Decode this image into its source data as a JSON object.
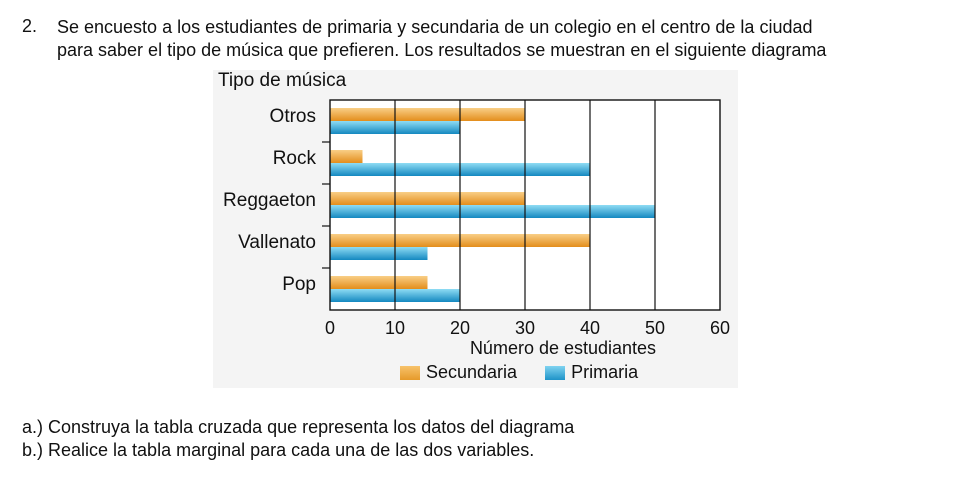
{
  "question": {
    "number": "2.",
    "line1": "Se encuesto a los estudiantes de primaria y secundaria de un colegio en el centro de la ciudad",
    "line2": "para saber el tipo de música que prefieren. Los resultados se muestran en el siguiente diagrama"
  },
  "chart_data": {
    "type": "bar",
    "orientation": "horizontal",
    "title": "Tipo de música",
    "xlabel": "Número de estudiantes",
    "ylabel": "",
    "categories": [
      "Otros",
      "Rock",
      "Reggaeton",
      "Vallenato",
      "Pop"
    ],
    "series": [
      {
        "name": "Secundaria",
        "values": [
          30,
          5,
          30,
          40,
          15
        ],
        "color": "#e69a2a"
      },
      {
        "name": "Primaria",
        "values": [
          20,
          40,
          50,
          15,
          20
        ],
        "color": "#1e93c8"
      }
    ],
    "xlim": [
      0,
      60
    ],
    "xticks": [
      "0",
      "10",
      "20",
      "30",
      "40",
      "50",
      "60"
    ],
    "grid": true,
    "legend_position": "bottom"
  },
  "subquestions": {
    "a": "a.) Construya la tabla cruzada que representa los datos del diagrama",
    "b": "b.) Realice la tabla marginal para cada una de las dos variables."
  }
}
